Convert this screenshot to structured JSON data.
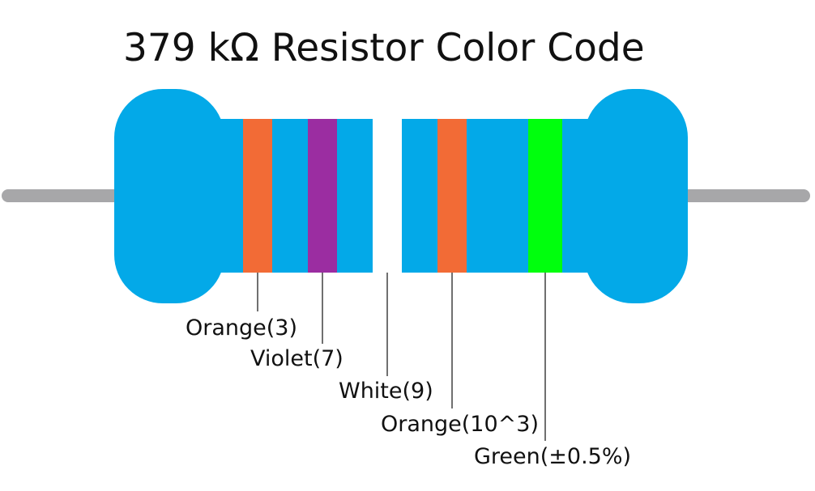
{
  "title": "379 kΩ Resistor Color Code",
  "colors": {
    "body": "#03a9e8",
    "lead": "#a7a7a9",
    "leader_line": "#111111"
  },
  "bands": [
    {
      "color_name": "Orange",
      "hex": "#f26b36",
      "label": "Orange(3)"
    },
    {
      "color_name": "Violet",
      "hex": "#9b2da1",
      "label": "Violet(7)"
    },
    {
      "color_name": "White",
      "hex": "#ffffff",
      "label": "White(9)"
    },
    {
      "color_name": "Orange",
      "hex": "#f26b36",
      "label": "Orange(10^3)"
    },
    {
      "color_name": "Green",
      "hex": "#00ff0d",
      "label": "Green(±0.5%)"
    }
  ]
}
